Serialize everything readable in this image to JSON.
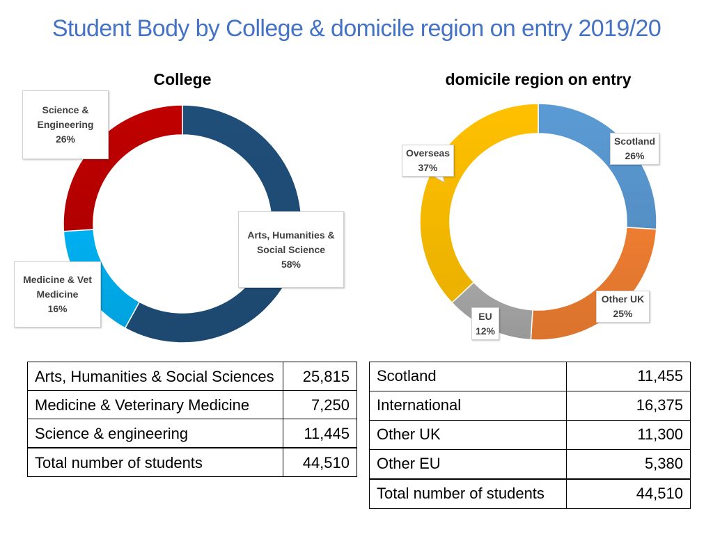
{
  "title": "Student Body by College & domicile region on entry 2019/20",
  "chart_data": [
    {
      "type": "pie",
      "title": "College",
      "categories": [
        "Arts, Humanities & Social Science",
        "Medicine & Vet Medicine",
        "Science & Engineering"
      ],
      "values": [
        58,
        16,
        26
      ],
      "labels": [
        "58%",
        "16%",
        "26%"
      ],
      "colors": [
        "#1f4e79",
        "#00b0f0",
        "#c00000"
      ],
      "style": "donut"
    },
    {
      "type": "pie",
      "title": "domicile region on entry",
      "categories": [
        "Scotland",
        "Other UK",
        "EU",
        "Overseas"
      ],
      "values": [
        26,
        25,
        12,
        37
      ],
      "labels": [
        "26%",
        "25%",
        "12%",
        "37%"
      ],
      "colors": [
        "#5b9bd5",
        "#ed7d31",
        "#a5a5a5",
        "#ffc000"
      ],
      "style": "donut"
    }
  ],
  "college_table": {
    "rows": [
      {
        "label": "Arts, Humanities & Social Sciences",
        "value": "25,815"
      },
      {
        "label": "Medicine & Veterinary Medicine",
        "value": "7,250"
      },
      {
        "label": "Science & engineering",
        "value": "11,445"
      }
    ],
    "total": {
      "label": "Total number of students",
      "value": "44,510"
    }
  },
  "domicile_table": {
    "rows": [
      {
        "label": "Scotland",
        "value": "11,455"
      },
      {
        "label": "International",
        "value": "16,375"
      },
      {
        "label": "Other UK",
        "value": "11,300"
      },
      {
        "label": "Other EU",
        "value": "5,380"
      }
    ],
    "total": {
      "label": "Total number of students",
      "value": "44,510"
    }
  }
}
